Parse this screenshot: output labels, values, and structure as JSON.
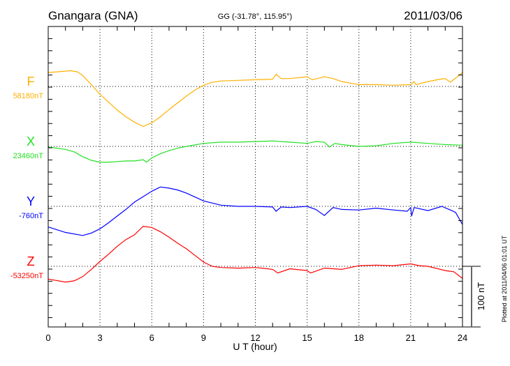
{
  "header": {
    "station": "Gnangara (GNA)",
    "coords": "GG (-31.78°, 115.95°)",
    "date": "2011/03/06"
  },
  "footer": {
    "plotted": "Plotted at 2011/04/06 01:01 UT",
    "scale_label": "100 nT"
  },
  "chart_data": {
    "type": "line",
    "xlabel": "U T (hour)",
    "xlim": [
      0,
      24
    ],
    "xticks": [
      "0",
      "3",
      "6",
      "9",
      "12",
      "15",
      "18",
      "21",
      "24"
    ],
    "scale_nT": 100,
    "grid": true,
    "series": [
      {
        "name": "F",
        "baseline_label": "58180nT",
        "color": "#ffb000",
        "points": [
          [
            0,
            23
          ],
          [
            0.5,
            24
          ],
          [
            1.3,
            26
          ],
          [
            1.7,
            24
          ],
          [
            2,
            18
          ],
          [
            2.5,
            3
          ],
          [
            3,
            -13
          ],
          [
            3.5,
            -26
          ],
          [
            4,
            -39
          ],
          [
            4.5,
            -50
          ],
          [
            5,
            -59
          ],
          [
            5.5,
            -66
          ],
          [
            6,
            -60
          ],
          [
            6.5,
            -50
          ],
          [
            7,
            -38
          ],
          [
            7.5,
            -27
          ],
          [
            8,
            -16
          ],
          [
            8.5,
            -6
          ],
          [
            9,
            2
          ],
          [
            9.5,
            7
          ],
          [
            10,
            9
          ],
          [
            11,
            10
          ],
          [
            12,
            11
          ],
          [
            13,
            12
          ],
          [
            13.2,
            20
          ],
          [
            13.5,
            13
          ],
          [
            14,
            13
          ],
          [
            15,
            16
          ],
          [
            15.3,
            11
          ],
          [
            16,
            16
          ],
          [
            16.5,
            13
          ],
          [
            17,
            8
          ],
          [
            18,
            3
          ],
          [
            19,
            3
          ],
          [
            20,
            2
          ],
          [
            21,
            3
          ],
          [
            21.2,
            8
          ],
          [
            21.3,
            3
          ],
          [
            22,
            8
          ],
          [
            22.7,
            12
          ],
          [
            23,
            13
          ],
          [
            23.3,
            7
          ],
          [
            23.7,
            16
          ],
          [
            24,
            23
          ]
        ]
      },
      {
        "name": "X",
        "baseline_label": "23460nT",
        "color": "#22e022",
        "points": [
          [
            0,
            -1
          ],
          [
            1,
            -5
          ],
          [
            1.5,
            -9
          ],
          [
            2,
            -17
          ],
          [
            2.5,
            -23
          ],
          [
            3,
            -26
          ],
          [
            3.5,
            -26
          ],
          [
            4,
            -25
          ],
          [
            4.5,
            -24
          ],
          [
            5,
            -24
          ],
          [
            5.5,
            -22
          ],
          [
            5.7,
            -26
          ],
          [
            6,
            -19
          ],
          [
            6.5,
            -12
          ],
          [
            7,
            -7
          ],
          [
            7.5,
            -3
          ],
          [
            8,
            0
          ],
          [
            9,
            5
          ],
          [
            10,
            7
          ],
          [
            11,
            7
          ],
          [
            12,
            8
          ],
          [
            13,
            9
          ],
          [
            14,
            7
          ],
          [
            15,
            5
          ],
          [
            15.5,
            8
          ],
          [
            16,
            7
          ],
          [
            16.3,
            -1
          ],
          [
            16.6,
            5
          ],
          [
            17,
            3
          ],
          [
            18,
            0
          ],
          [
            19,
            1
          ],
          [
            20,
            5
          ],
          [
            21,
            7
          ],
          [
            22,
            5
          ],
          [
            23,
            3
          ],
          [
            24,
            2
          ]
        ]
      },
      {
        "name": "Y",
        "baseline_label": "-760nT",
        "color": "#0000ff",
        "points": [
          [
            0,
            -34
          ],
          [
            1,
            -43
          ],
          [
            2,
            -48
          ],
          [
            2.5,
            -44
          ],
          [
            3,
            -37
          ],
          [
            3.5,
            -27
          ],
          [
            4,
            -16
          ],
          [
            4.5,
            -5
          ],
          [
            5,
            7
          ],
          [
            5.5,
            16
          ],
          [
            6,
            25
          ],
          [
            6.5,
            32
          ],
          [
            7,
            30
          ],
          [
            7.5,
            27
          ],
          [
            8,
            22
          ],
          [
            9,
            9
          ],
          [
            10,
            2
          ],
          [
            11,
            0
          ],
          [
            12,
            0
          ],
          [
            13,
            -1
          ],
          [
            13.2,
            -8
          ],
          [
            13.5,
            -1
          ],
          [
            14,
            -2
          ],
          [
            15,
            0
          ],
          [
            15.5,
            -5
          ],
          [
            16,
            -15
          ],
          [
            16.5,
            -2
          ],
          [
            17,
            -5
          ],
          [
            18,
            -6
          ],
          [
            19,
            -3
          ],
          [
            20,
            -6
          ],
          [
            20.8,
            -8
          ],
          [
            21,
            -2
          ],
          [
            21.05,
            -16
          ],
          [
            21.2,
            -2
          ],
          [
            22,
            -7
          ],
          [
            22.8,
            0
          ],
          [
            23.3,
            -6
          ],
          [
            23.6,
            -10
          ],
          [
            24,
            -30
          ]
        ]
      },
      {
        "name": "Z",
        "baseline_label": "-53250nT",
        "color": "#ff0000",
        "points": [
          [
            0,
            -21
          ],
          [
            1,
            -26
          ],
          [
            1.5,
            -24
          ],
          [
            2,
            -17
          ],
          [
            2.5,
            -5
          ],
          [
            3,
            8
          ],
          [
            3.5,
            20
          ],
          [
            4,
            33
          ],
          [
            4.5,
            44
          ],
          [
            5,
            52
          ],
          [
            5.5,
            66
          ],
          [
            6,
            64
          ],
          [
            6.5,
            57
          ],
          [
            7,
            48
          ],
          [
            7.5,
            38
          ],
          [
            8,
            29
          ],
          [
            8.5,
            18
          ],
          [
            9,
            7
          ],
          [
            9.5,
            0
          ],
          [
            10,
            -2
          ],
          [
            11,
            -3
          ],
          [
            12,
            -2
          ],
          [
            13,
            -5
          ],
          [
            13.3,
            -11
          ],
          [
            14,
            -4
          ],
          [
            15,
            -7
          ],
          [
            15.2,
            -11
          ],
          [
            16,
            -3
          ],
          [
            17,
            -5
          ],
          [
            18,
            1
          ],
          [
            19,
            2
          ],
          [
            20,
            1
          ],
          [
            21,
            4
          ],
          [
            21.5,
            1
          ],
          [
            22,
            0
          ],
          [
            23,
            -7
          ],
          [
            23.5,
            -9
          ],
          [
            24,
            -20
          ]
        ]
      }
    ]
  }
}
